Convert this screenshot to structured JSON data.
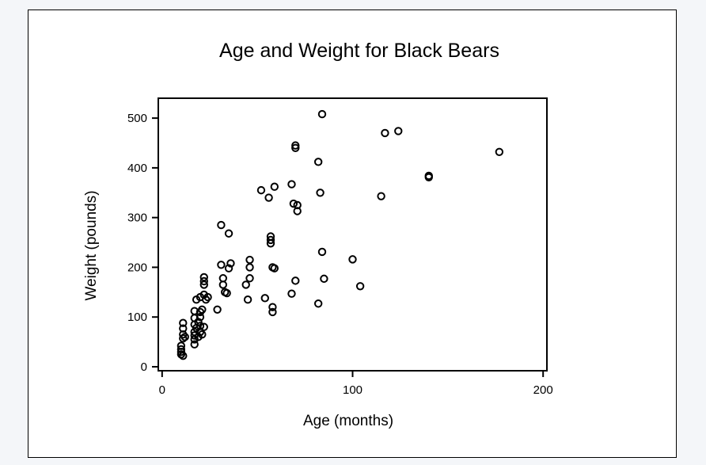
{
  "chart_data": {
    "type": "scatter",
    "title": "Age and Weight for Black Bears",
    "xlabel": "Age (months)",
    "ylabel": "Weight (pounds)",
    "xlim": [
      -2,
      202
    ],
    "ylim": [
      -8,
      540
    ],
    "xticks": [
      0,
      100,
      200
    ],
    "yticks": [
      0,
      100,
      200,
      300,
      400,
      500
    ],
    "grid": false,
    "legend": "none",
    "marker": "open-circle",
    "colors": {
      "marker": "#000000",
      "axes": "#000000",
      "background": "#ffffff"
    },
    "points": [
      {
        "x": 10,
        "y": 25
      },
      {
        "x": 10,
        "y": 30
      },
      {
        "x": 10,
        "y": 35
      },
      {
        "x": 10,
        "y": 42
      },
      {
        "x": 11,
        "y": 22
      },
      {
        "x": 11,
        "y": 57
      },
      {
        "x": 11,
        "y": 65
      },
      {
        "x": 11,
        "y": 77
      },
      {
        "x": 11,
        "y": 88
      },
      {
        "x": 12,
        "y": 60
      },
      {
        "x": 17,
        "y": 45
      },
      {
        "x": 17,
        "y": 55
      },
      {
        "x": 17,
        "y": 63
      },
      {
        "x": 17,
        "y": 70
      },
      {
        "x": 17,
        "y": 85
      },
      {
        "x": 17,
        "y": 98
      },
      {
        "x": 17,
        "y": 112
      },
      {
        "x": 18,
        "y": 78
      },
      {
        "x": 18,
        "y": 135
      },
      {
        "x": 19,
        "y": 60
      },
      {
        "x": 19,
        "y": 90
      },
      {
        "x": 20,
        "y": 70
      },
      {
        "x": 20,
        "y": 82
      },
      {
        "x": 20,
        "y": 100
      },
      {
        "x": 20,
        "y": 110
      },
      {
        "x": 20,
        "y": 140
      },
      {
        "x": 21,
        "y": 65
      },
      {
        "x": 21,
        "y": 115
      },
      {
        "x": 22,
        "y": 80
      },
      {
        "x": 22,
        "y": 145
      },
      {
        "x": 22,
        "y": 165
      },
      {
        "x": 22,
        "y": 172
      },
      {
        "x": 22,
        "y": 180
      },
      {
        "x": 23,
        "y": 135
      },
      {
        "x": 24,
        "y": 140
      },
      {
        "x": 29,
        "y": 115
      },
      {
        "x": 31,
        "y": 205
      },
      {
        "x": 31,
        "y": 285
      },
      {
        "x": 32,
        "y": 165
      },
      {
        "x": 32,
        "y": 178
      },
      {
        "x": 33,
        "y": 150
      },
      {
        "x": 34,
        "y": 148
      },
      {
        "x": 35,
        "y": 198
      },
      {
        "x": 35,
        "y": 268
      },
      {
        "x": 36,
        "y": 208
      },
      {
        "x": 44,
        "y": 165
      },
      {
        "x": 45,
        "y": 135
      },
      {
        "x": 46,
        "y": 178
      },
      {
        "x": 46,
        "y": 200
      },
      {
        "x": 46,
        "y": 215
      },
      {
        "x": 52,
        "y": 355
      },
      {
        "x": 54,
        "y": 138
      },
      {
        "x": 56,
        "y": 340
      },
      {
        "x": 57,
        "y": 248
      },
      {
        "x": 57,
        "y": 255
      },
      {
        "x": 57,
        "y": 262
      },
      {
        "x": 58,
        "y": 110
      },
      {
        "x": 58,
        "y": 120
      },
      {
        "x": 58,
        "y": 200
      },
      {
        "x": 59,
        "y": 198
      },
      {
        "x": 59,
        "y": 362
      },
      {
        "x": 68,
        "y": 147
      },
      {
        "x": 68,
        "y": 367
      },
      {
        "x": 69,
        "y": 328
      },
      {
        "x": 70,
        "y": 173
      },
      {
        "x": 70,
        "y": 440
      },
      {
        "x": 70,
        "y": 445
      },
      {
        "x": 71,
        "y": 313
      },
      {
        "x": 71,
        "y": 325
      },
      {
        "x": 82,
        "y": 127
      },
      {
        "x": 82,
        "y": 412
      },
      {
        "x": 83,
        "y": 350
      },
      {
        "x": 84,
        "y": 231
      },
      {
        "x": 84,
        "y": 508
      },
      {
        "x": 85,
        "y": 177
      },
      {
        "x": 100,
        "y": 216
      },
      {
        "x": 104,
        "y": 162
      },
      {
        "x": 115,
        "y": 343
      },
      {
        "x": 117,
        "y": 470
      },
      {
        "x": 124,
        "y": 474
      },
      {
        "x": 140,
        "y": 381
      },
      {
        "x": 140,
        "y": 384
      },
      {
        "x": 177,
        "y": 432
      }
    ]
  }
}
